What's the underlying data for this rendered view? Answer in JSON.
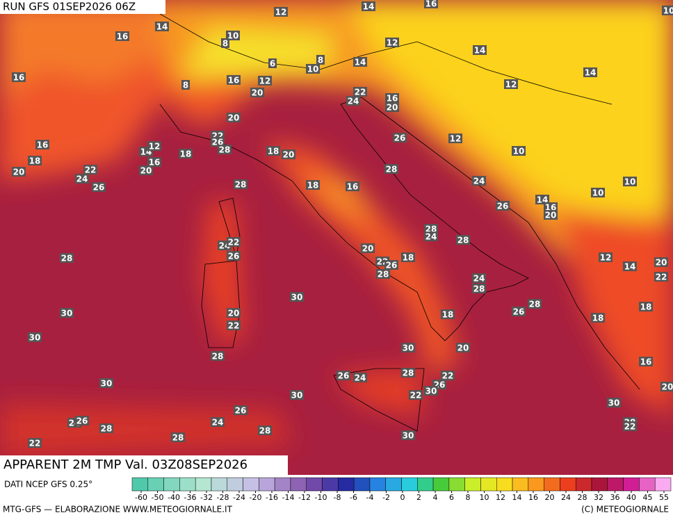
{
  "header": {
    "run": "RUN GFS 01SEP2026 06Z"
  },
  "title": "APPARENT 2M TMP Val. 03Z08SEP2026",
  "source": "DATI NCEP GFS 0.25°",
  "footer": {
    "left": "MTG-GFS — ELABORAZIONE WWW.METEOGIORNALE.IT",
    "right": "(C) METEOGIORNALE"
  },
  "colorbar_ticks": [
    -60,
    -50,
    -40,
    -36,
    -32,
    -28,
    -24,
    -20,
    -16,
    -14,
    -12,
    -10,
    -8,
    -6,
    -4,
    -2,
    0,
    2,
    4,
    6,
    8,
    10,
    12,
    14,
    16,
    20,
    24,
    28,
    32,
    36,
    40,
    45,
    55
  ],
  "contour_labels": [
    16,
    14,
    12,
    10,
    14,
    16,
    10,
    8,
    12,
    14,
    8,
    6,
    10,
    14,
    14,
    16,
    8,
    16,
    12,
    12,
    20,
    22,
    24,
    16,
    20,
    20,
    22,
    26,
    28,
    12,
    16,
    14,
    12,
    18,
    18,
    20,
    26,
    10,
    18,
    16,
    20,
    22,
    20,
    28,
    24,
    26,
    24,
    28,
    18,
    16,
    10,
    10,
    14,
    16,
    20,
    26,
    28,
    24,
    28,
    24,
    22,
    20,
    26,
    28,
    18,
    22,
    26,
    28,
    12,
    14,
    20,
    22,
    24,
    28,
    30,
    28,
    26,
    30,
    20,
    18,
    18,
    18,
    22,
    30,
    30,
    20,
    28,
    16,
    26,
    24,
    28,
    22,
    26,
    30,
    22,
    30,
    20,
    30,
    30,
    26,
    24,
    26,
    28,
    24,
    28,
    28,
    22,
    22,
    28,
    30
  ]
}
